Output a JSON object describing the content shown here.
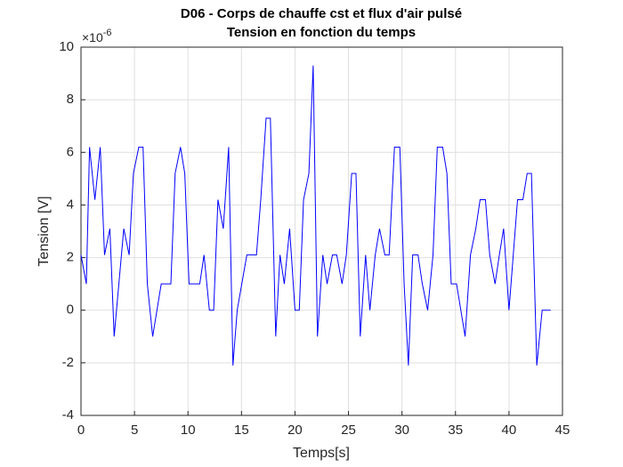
{
  "chart_data": {
    "type": "line",
    "title": [
      "D06 - Corps de chauffe cst et flux d'air pulsé",
      "Tension en fonction du temps"
    ],
    "x_label": "Temps[s]",
    "y_label": "Tension [V]",
    "y_exponent_base": "×10",
    "y_exponent": "-6",
    "x": [
      0,
      0.5,
      0.8,
      1.3,
      1.8,
      2.2,
      2.7,
      3.1,
      4.0,
      4.5,
      4.9,
      5.4,
      5.8,
      6.2,
      6.7,
      7.5,
      8.0,
      8.4,
      8.8,
      9.3,
      9.7,
      10.1,
      11.1,
      11.5,
      12.0,
      12.4,
      12.8,
      13.3,
      13.8,
      14.2,
      14.6,
      15.5,
      16.0,
      16.4,
      16.8,
      17.3,
      17.7,
      18.2,
      18.6,
      19.0,
      19.5,
      20.0,
      20.4,
      20.8,
      21.3,
      21.7,
      22.1,
      22.6,
      23.0,
      23.5,
      23.9,
      24.4,
      24.8,
      25.3,
      25.7,
      26.1,
      26.6,
      27.0,
      27.5,
      27.9,
      28.4,
      28.8,
      29.3,
      29.8,
      30.2,
      30.6,
      31.0,
      31.5,
      31.9,
      32.4,
      32.9,
      33.3,
      33.8,
      34.2,
      34.6,
      35.1,
      35.5,
      35.9,
      36.4,
      36.9,
      37.3,
      37.8,
      38.2,
      38.7,
      39.1,
      39.5,
      40.0,
      40.4,
      40.8,
      41.3,
      41.7,
      42.1,
      42.6,
      43.1,
      43.5,
      43.9
    ],
    "series": [
      {
        "color": "#0000ff",
        "values": [
          2.1,
          1.0,
          6.2,
          4.2,
          6.2,
          2.1,
          3.1,
          -1.0,
          3.1,
          2.1,
          5.2,
          6.2,
          6.2,
          1.0,
          -1.0,
          1.0,
          1.0,
          1.0,
          5.2,
          6.2,
          5.2,
          1.0,
          1.0,
          2.1,
          0,
          0,
          4.2,
          3.1,
          6.2,
          -2.1,
          0,
          2.1,
          2.1,
          2.1,
          4.2,
          7.3,
          7.3,
          -1.0,
          2.1,
          1.0,
          3.1,
          0,
          0,
          4.2,
          5.2,
          9.3,
          -1.0,
          2.1,
          1.0,
          2.1,
          2.1,
          1.0,
          2.1,
          5.2,
          5.2,
          -1.0,
          2.1,
          0,
          2.1,
          3.1,
          2.1,
          2.1,
          6.2,
          6.2,
          1.0,
          -2.1,
          2.1,
          2.1,
          1.0,
          0,
          2.1,
          6.2,
          6.2,
          5.2,
          1.0,
          1.0,
          0,
          -1.0,
          2.1,
          3.1,
          4.2,
          4.2,
          2.1,
          1.0,
          2.1,
          3.1,
          0,
          2.1,
          4.2,
          4.2,
          5.2,
          5.2,
          -2.1,
          0,
          0,
          0
        ]
      }
    ],
    "xlim": [
      0,
      45
    ],
    "xticks": [
      0,
      5,
      10,
      15,
      20,
      25,
      30,
      35,
      40,
      45
    ],
    "ylim": [
      -4,
      10
    ],
    "yticks": [
      -4,
      -2,
      0,
      2,
      4,
      6,
      8,
      10
    ],
    "grid": true
  }
}
